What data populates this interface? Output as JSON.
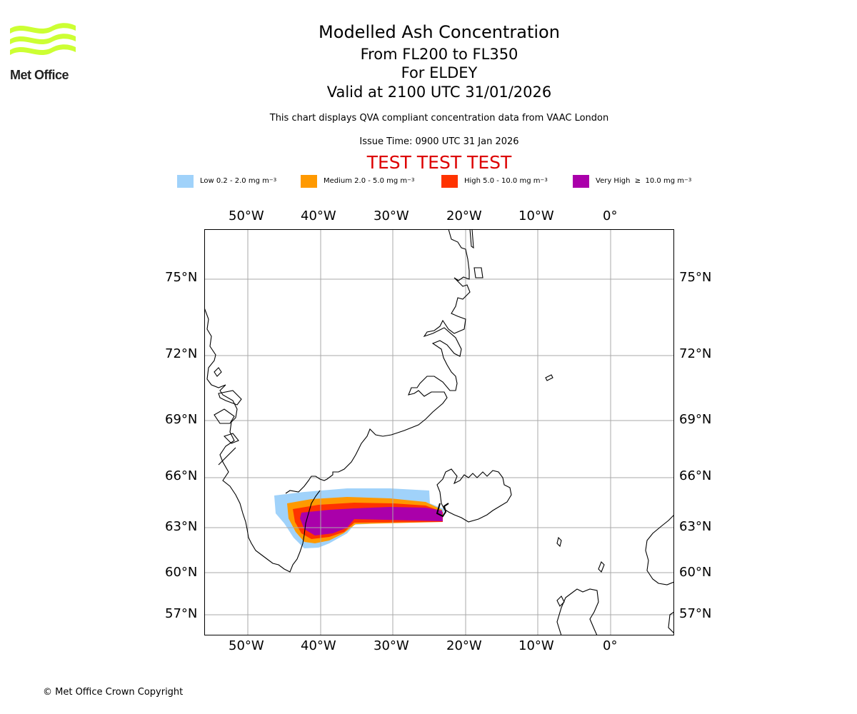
{
  "header": {
    "title": "Modelled Ash Concentration",
    "levels": "From FL200 to FL350",
    "volcano": "For ELDEY",
    "valid": "Valid at 2100 UTC 31/01/2026",
    "description": "This chart displays QVA compliant concentration data from VAAC London",
    "issue_time": "Issue Time: 0900 UTC 31 Jan 2026",
    "test_banner": "TEST TEST TEST"
  },
  "logo": {
    "text": "Met Office",
    "accent": "#ccff33"
  },
  "legend": [
    {
      "label": "Low 0.2 - 2.0 mg m",
      "exp": "−3",
      "color": "#a0d2fa"
    },
    {
      "label": "Medium 2.0 - 5.0 mg m",
      "exp": "−3",
      "color": "#ff9900"
    },
    {
      "label": "High 5.0 - 10.0 mg m",
      "exp": "−3",
      "color": "#ff3300"
    },
    {
      "label": "Very High  ≥  10.0 mg m",
      "exp": "−3",
      "color": "#aa00aa"
    }
  ],
  "map": {
    "lon_ticks": [
      "50°W",
      "40°W",
      "30°W",
      "20°W",
      "10°W",
      "0°"
    ],
    "lat_ticks": [
      "75°N",
      "72°N",
      "69°N",
      "66°N",
      "63°N",
      "60°N",
      "57°N"
    ],
    "grid_color": "#aaaaaa",
    "coast_color": "#000000"
  },
  "footer": {
    "copyright": "© Met Office Crown Copyright"
  }
}
